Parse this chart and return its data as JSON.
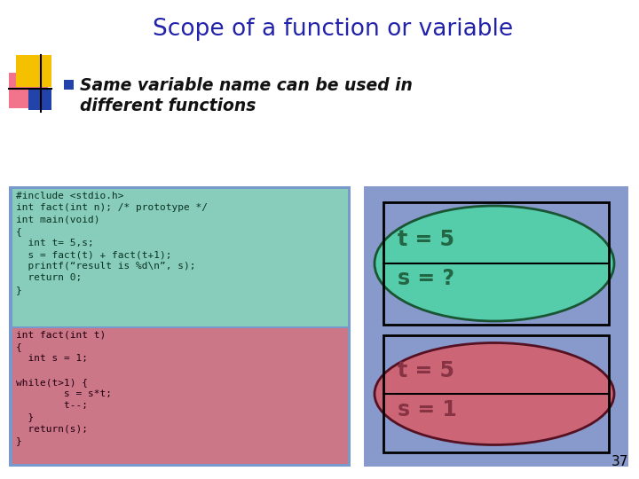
{
  "title": "Scope of a function or variable",
  "title_color": "#2222aa",
  "bullet_text_line1": "Same variable name can be used in",
  "bullet_text_line2": "different functions",
  "bullet_color": "#111111",
  "bg_color": "#ffffff",
  "slide_number": "37",
  "code_top_bg": "#88ccbb",
  "code_bottom_bg": "#cc7788",
  "code_outer_bg": "#7799cc",
  "code_top_text": "#include <stdio.h>\nint fact(int n); /* prototype */\nint main(void)\n{\n  int t= 5,s;\n  s = fact(t) + fact(t+1);\n  printf(“result is %d\\n”, s);\n  return 0;\n}",
  "code_bottom_text": "int fact(int t)\n{\n  int s = 1;\n\nwhile(t>1) {\n        s = s*t;\n        t--;\n  }\n  return(s);\n}",
  "diagram_bg": "#8899cc",
  "top_ellipse_color": "#55ccaa",
  "bottom_ellipse_color": "#cc6677",
  "top_box_text1": "t = 5",
  "top_box_text2": "s = ?",
  "bottom_box_text1": "t = 5",
  "bottom_box_text2": "s = 1",
  "top_text_color": "#226644",
  "bottom_text_color": "#883344"
}
